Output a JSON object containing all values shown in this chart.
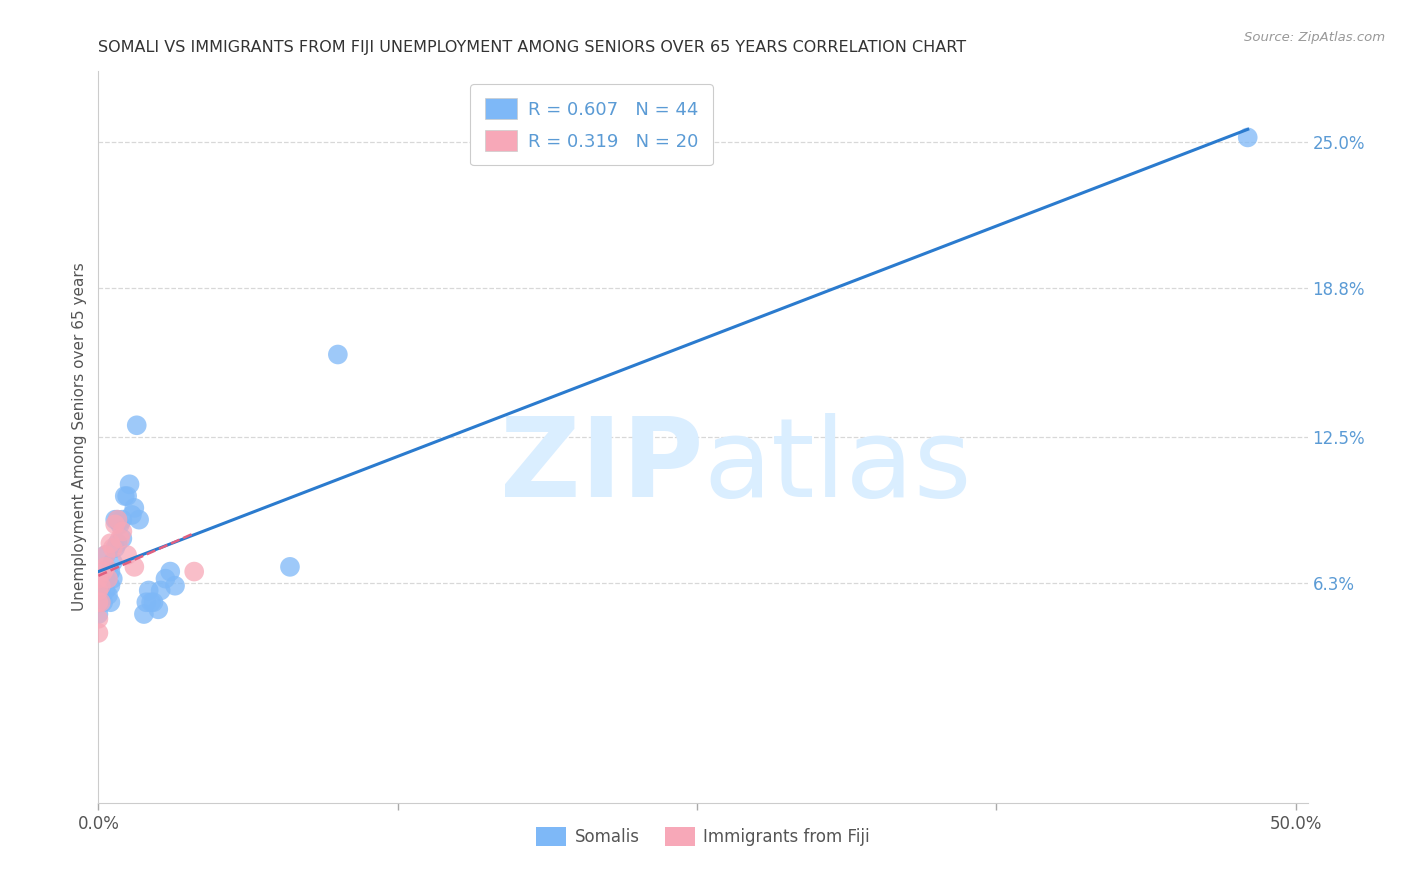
{
  "title": "SOMALI VS IMMIGRANTS FROM FIJI UNEMPLOYMENT AMONG SENIORS OVER 65 YEARS CORRELATION CHART",
  "source": "Source: ZipAtlas.com",
  "ylabel": "Unemployment Among Seniors over 65 years",
  "xlim": [
    0.0,
    0.505
  ],
  "ylim": [
    -0.03,
    0.28
  ],
  "xticks": [
    0.0,
    0.125,
    0.25,
    0.375,
    0.5
  ],
  "xtick_labels": [
    "0.0%",
    "",
    "",
    "",
    "50.0%"
  ],
  "ytick_positions_right": [
    0.25,
    0.188,
    0.125,
    0.063
  ],
  "ytick_labels_right": [
    "25.0%",
    "18.8%",
    "12.5%",
    "6.3%"
  ],
  "background_color": "#ffffff",
  "grid_color": "#d8d8d8",
  "somali_color": "#7eb8f7",
  "fiji_color": "#f7a8b8",
  "somali_line_color": "#2b7bce",
  "fiji_line_color": "#e06080",
  "watermark_color": "#daeeff",
  "R_somali": 0.607,
  "N_somali": 44,
  "R_fiji": 0.319,
  "N_fiji": 20,
  "somali_x": [
    0.0,
    0.0,
    0.0,
    0.0,
    0.001,
    0.001,
    0.002,
    0.002,
    0.003,
    0.003,
    0.003,
    0.004,
    0.005,
    0.005,
    0.005,
    0.006,
    0.006,
    0.007,
    0.007,
    0.008,
    0.008,
    0.009,
    0.01,
    0.01,
    0.011,
    0.012,
    0.013,
    0.014,
    0.015,
    0.016,
    0.017,
    0.019,
    0.02,
    0.021,
    0.022,
    0.023,
    0.025,
    0.026,
    0.028,
    0.03,
    0.032,
    0.08,
    0.1,
    0.48
  ],
  "somali_y": [
    0.05,
    0.055,
    0.058,
    0.06,
    0.06,
    0.065,
    0.068,
    0.055,
    0.06,
    0.065,
    0.075,
    0.058,
    0.055,
    0.062,
    0.068,
    0.065,
    0.072,
    0.078,
    0.09,
    0.08,
    0.09,
    0.088,
    0.082,
    0.09,
    0.1,
    0.1,
    0.105,
    0.092,
    0.095,
    0.13,
    0.09,
    0.05,
    0.055,
    0.06,
    0.055,
    0.055,
    0.052,
    0.06,
    0.065,
    0.068,
    0.062,
    0.07,
    0.16,
    0.252
  ],
  "fiji_x": [
    0.0,
    0.0,
    0.0,
    0.0,
    0.0,
    0.001,
    0.001,
    0.002,
    0.003,
    0.003,
    0.004,
    0.005,
    0.006,
    0.007,
    0.008,
    0.009,
    0.01,
    0.012,
    0.015,
    0.04
  ],
  "fiji_y": [
    0.042,
    0.048,
    0.055,
    0.06,
    0.065,
    0.055,
    0.062,
    0.068,
    0.07,
    0.075,
    0.065,
    0.08,
    0.078,
    0.088,
    0.09,
    0.082,
    0.085,
    0.075,
    0.07,
    0.068
  ],
  "somali_line_x": [
    0.0,
    0.48
  ],
  "somali_line_y": [
    0.048,
    0.252
  ],
  "fiji_line_x": [
    0.0,
    0.04
  ],
  "fiji_line_y": [
    0.06,
    0.08
  ]
}
